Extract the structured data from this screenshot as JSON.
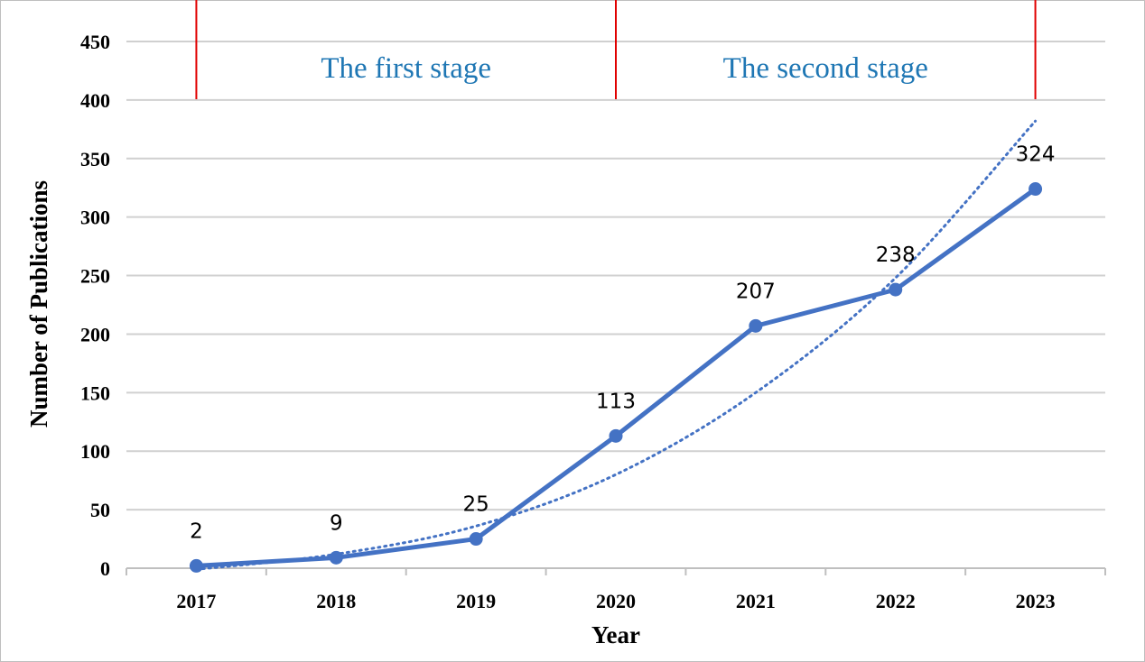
{
  "chart_data": {
    "type": "line",
    "categories": [
      "2017",
      "2018",
      "2019",
      "2020",
      "2021",
      "2022",
      "2023"
    ],
    "series": [
      {
        "values": [
          2,
          9,
          25,
          113,
          207,
          238,
          324
        ],
        "data_labels": [
          "2",
          "9",
          "25",
          "113",
          "207",
          "238",
          "324"
        ],
        "color": "#4472c4",
        "style": "solid-with-markers"
      },
      {
        "values": [
          -1,
          12,
          36,
          80,
          150,
          248,
          382
        ],
        "color": "#4472c4",
        "style": "dotted-trendline"
      }
    ],
    "xlabel": "Year",
    "ylabel": "Number of Publications",
    "ylim": [
      0,
      450
    ],
    "yticks": [
      "0",
      "50",
      "100",
      "150",
      "200",
      "250",
      "300",
      "350",
      "400",
      "450"
    ],
    "grid": true,
    "stages": [
      {
        "label": "The first stage",
        "from_year": "2017",
        "to_year": "2020"
      },
      {
        "label": "The second stage",
        "from_year": "2020",
        "to_year": "2023"
      }
    ],
    "stage_divider_color": "#e00000",
    "stage_label_color": "#1f77b4"
  }
}
